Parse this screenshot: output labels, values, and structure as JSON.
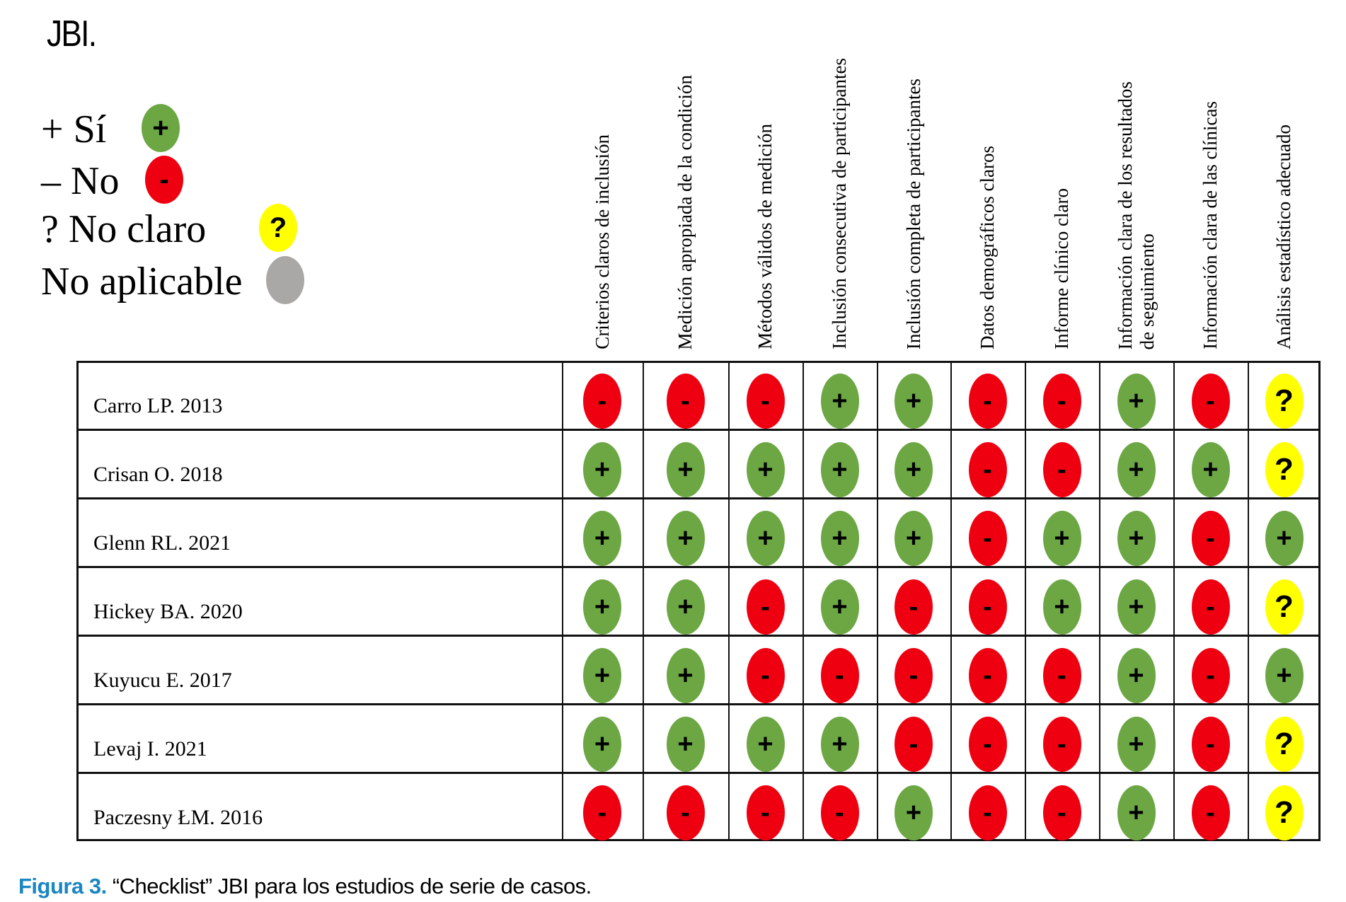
{
  "logo": "JBI.",
  "legend": [
    {
      "label": "+ Sí",
      "symbol": "+",
      "status": "yes",
      "color": "#6ca744"
    },
    {
      "label": "– No",
      "symbol": "-",
      "status": "no",
      "color": "#ee0010"
    },
    {
      "label": "? No claro",
      "symbol": "?",
      "status": "unclear",
      "color": "#ffff00"
    },
    {
      "label": "No aplicable",
      "symbol": "",
      "status": "na",
      "color": "#aaa7a7"
    }
  ],
  "columns": [
    [
      "Criterios claros de inclusión"
    ],
    [
      "Medición apropiada de la condición"
    ],
    [
      "Métodos válidos de medición"
    ],
    [
      "Inclusión consecutiva de participantes"
    ],
    [
      "Inclusión completa de participantes"
    ],
    [
      "Datos demográficos claros"
    ],
    [
      "Informe clínico claro"
    ],
    [
      "Información clara de los resultados",
      "de seguimiento"
    ],
    [
      "Información clara de las clínicas"
    ],
    [
      "Análisis estadístico adecuado"
    ]
  ],
  "rows": [
    {
      "study": "Carro LP. 2013",
      "ratings": [
        "-",
        "-",
        "-",
        "+",
        "+",
        "-",
        "-",
        "+",
        "-",
        "?"
      ]
    },
    {
      "study": "Crisan O. 2018",
      "ratings": [
        "+",
        "+",
        "+",
        "+",
        "+",
        "-",
        "-",
        "+",
        "+",
        "?"
      ]
    },
    {
      "study": "Glenn RL. 2021",
      "ratings": [
        "+",
        "+",
        "+",
        "+",
        "+",
        "-",
        "+",
        "+",
        "-",
        "+"
      ]
    },
    {
      "study": "Hickey BA. 2020",
      "ratings": [
        "+",
        "+",
        "-",
        "+",
        "-",
        "-",
        "+",
        "+",
        "-",
        "?"
      ]
    },
    {
      "study": "Kuyucu E. 2017",
      "ratings": [
        "+",
        "+",
        "-",
        "-",
        "-",
        "-",
        "-",
        "+",
        "-",
        "+"
      ]
    },
    {
      "study": "Levaj I. 2021",
      "ratings": [
        "+",
        "+",
        "+",
        "+",
        "-",
        "-",
        "-",
        "+",
        "-",
        "?"
      ]
    },
    {
      "study": "Paczesny ŁM. 2016",
      "ratings": [
        "-",
        "-",
        "-",
        "-",
        "+",
        "-",
        "-",
        "+",
        "-",
        "?"
      ]
    }
  ],
  "caption": {
    "label": "Figura 3.",
    "text": " “Checklist” JBI para los estudios de serie de casos."
  }
}
